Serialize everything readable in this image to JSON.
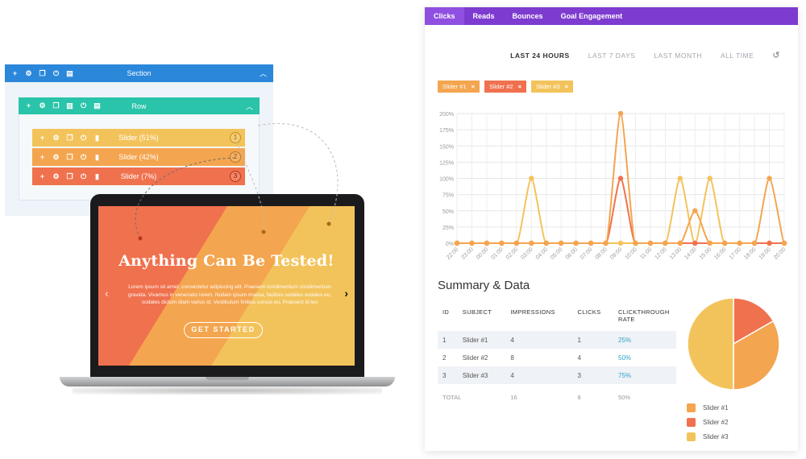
{
  "colors": {
    "section": "#2b87da",
    "row": "#29c4a9",
    "slider1": "#f3c35b",
    "slider2": "#f4a54f",
    "slider3": "#f0714e",
    "tabs_bg": "#7e3bd0",
    "rate": "#2ea3c5"
  },
  "builder": {
    "section_label": "Section",
    "row_label": "Row",
    "sliders": [
      {
        "label": "Slider (51%)",
        "num": "1"
      },
      {
        "label": "Slider (42%)",
        "num": "2"
      },
      {
        "label": "Slider (7%)",
        "num": "3"
      }
    ],
    "icons": [
      "plus-icon",
      "gear-icon",
      "duplicate-icon",
      "power-icon",
      "trash-icon",
      "columns-icon",
      "stats-icon",
      "chevron-up-icon"
    ]
  },
  "hero": {
    "title": "Anything Can Be Tested!",
    "text": "Lorem ipsum sit amet, consectetur adipiscing elit. Praesent condimentum condimentum gravida. Vivamus in venenatis lorem. Nullam ipsum massa, facilisis sodales sodales eu, sodales dictum diam varius id. Vestibulum finibus cursus eu. Praesent id leo",
    "button": "GET STARTED"
  },
  "analytics": {
    "tabs": [
      "Clicks",
      "Reads",
      "Bounces",
      "Goal Engagement"
    ],
    "ranges": [
      "LAST 24 HOURS",
      "LAST 7 DAYS",
      "LAST MONTH",
      "ALL TIME"
    ],
    "chips": [
      "Slider #1",
      "Slider #2",
      "Slider #3"
    ],
    "summary_title": "Summary & Data",
    "table": {
      "headers": [
        "ID",
        "SUBJECT",
        "IMPRESSIONS",
        "CLICKS",
        "CLICKTHROUGH RATE"
      ],
      "rows": [
        [
          "1",
          "Slider #1",
          "4",
          "1",
          "25%"
        ],
        [
          "2",
          "Slider #2",
          "8",
          "4",
          "50%"
        ],
        [
          "3",
          "Slider #3",
          "4",
          "3",
          "75%"
        ]
      ],
      "total": [
        "TOTAL",
        "16",
        "8",
        "50%"
      ]
    },
    "legend": [
      "Slider #1",
      "Slider #2",
      "Slider #3"
    ]
  },
  "chart_data": [
    {
      "type": "line",
      "x": [
        "22:00",
        "23:00",
        "00:00",
        "01:00",
        "02:00",
        "03:00",
        "04:00",
        "05:00",
        "06:00",
        "07:00",
        "08:00",
        "09:00",
        "10:00",
        "11:00",
        "12:00",
        "13:00",
        "14:00",
        "15:00",
        "16:00",
        "17:00",
        "18:00",
        "19:00",
        "20:00"
      ],
      "ylim": [
        0,
        200
      ],
      "yticks": [
        "0%",
        "25%",
        "50%",
        "75%",
        "100%",
        "125%",
        "150%",
        "175%",
        "200%"
      ],
      "grid": true,
      "series": [
        {
          "name": "Slider #1",
          "color": "#f4a54f",
          "values": [
            0,
            0,
            0,
            0,
            0,
            0,
            0,
            0,
            0,
            0,
            0,
            200,
            0,
            0,
            0,
            0,
            50,
            0,
            0,
            0,
            0,
            100,
            0
          ]
        },
        {
          "name": "Slider #2",
          "color": "#f0714e",
          "values": [
            0,
            0,
            0,
            0,
            0,
            0,
            0,
            0,
            0,
            0,
            0,
            100,
            0,
            0,
            0,
            0,
            0,
            0,
            0,
            0,
            0,
            0,
            0
          ]
        },
        {
          "name": "Slider #3",
          "color": "#f3c35b",
          "values": [
            0,
            0,
            0,
            0,
            0,
            100,
            0,
            0,
            0,
            0,
            0,
            0,
            0,
            0,
            0,
            100,
            0,
            100,
            0,
            0,
            0,
            0,
            0
          ]
        }
      ]
    },
    {
      "type": "pie",
      "categories": [
        "Slider #1",
        "Slider #2",
        "Slider #3"
      ],
      "values": [
        16.7,
        33.3,
        50
      ],
      "colors": [
        "#f0714e",
        "#f4a54f",
        "#f3c35b"
      ]
    }
  ]
}
